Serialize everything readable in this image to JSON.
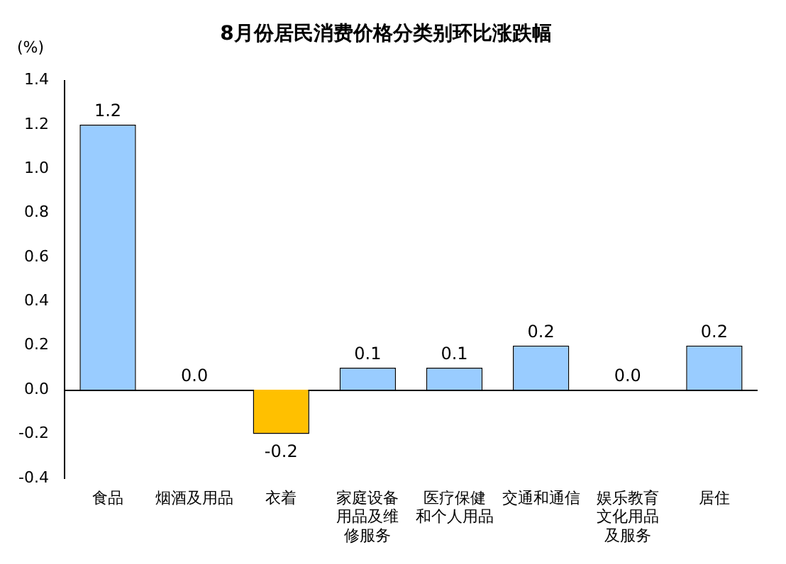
{
  "chart_data": {
    "type": "bar",
    "title": "8月份居民消费价格分类别环比涨跌幅",
    "ylabel": "(%)",
    "categories": [
      "食品",
      "烟酒及用品",
      "衣着",
      "家庭设备用品及维修服务",
      "医疗保健和个人用品",
      "交通和通信",
      "娱乐教育文化用品及服务",
      "居住"
    ],
    "values": [
      1.2,
      0,
      -0.2,
      0.1,
      0.1,
      0.2,
      0,
      0.2
    ],
    "colors": [
      "#99ccff",
      "#99ccff",
      "#ffc000",
      "#99ccff",
      "#99ccff",
      "#99ccff",
      "#99ccff",
      "#99ccff"
    ],
    "value_labels": [
      "1.2",
      "0.0",
      "-0.2",
      "0.1",
      "0.1",
      "0.2",
      "0.0",
      "0.2"
    ],
    "ylim": [
      -0.4,
      1.4
    ],
    "yticks": [
      {
        "value": -0.4,
        "label": "-0.4"
      },
      {
        "value": -0.2,
        "label": "-0.2"
      },
      {
        "value": 0,
        "label": "0.0"
      },
      {
        "value": 0.2,
        "label": "0.2"
      },
      {
        "value": 0.4,
        "label": "0.4"
      },
      {
        "value": 0.6,
        "label": "0.6"
      },
      {
        "value": 0.8,
        "label": "0.8"
      },
      {
        "value": 1,
        "label": "1.0"
      },
      {
        "value": 1.2,
        "label": "1.2"
      },
      {
        "value": 1.4,
        "label": "1.4"
      }
    ],
    "ref_lines": [
      {
        "axis": "y",
        "value": 0,
        "color": "#000000"
      }
    ],
    "grid": false,
    "legend": false
  }
}
